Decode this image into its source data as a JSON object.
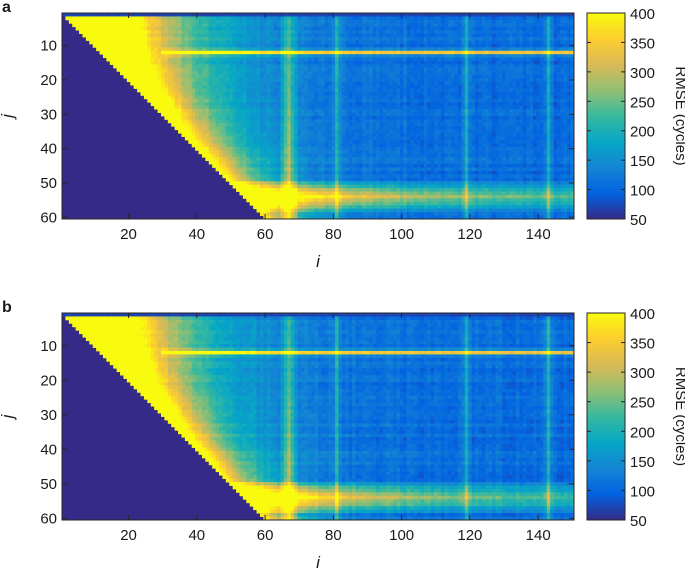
{
  "chart_data": [
    {
      "type": "heatmap",
      "panel_label": "a",
      "xlabel": "i",
      "ylabel": "j",
      "colorbar_label": "RMSE (cycles)",
      "x_range": [
        1,
        150
      ],
      "y_range": [
        1,
        60
      ],
      "y_reversed": true,
      "x_ticks": [
        20,
        40,
        60,
        80,
        100,
        120,
        140
      ],
      "y_ticks": [
        10,
        20,
        30,
        40,
        50,
        60
      ],
      "colorbar_ticks": [
        50,
        100,
        150,
        200,
        250,
        300,
        350,
        400
      ],
      "color_range": [
        50,
        400
      ],
      "colormap": "parula",
      "empty_region": "lower-left triangle where j > i",
      "features": {
        "bright_row_j": 12,
        "bright_row_from_i": 30,
        "bright_band_j": [
          51,
          57
        ],
        "bright_column_i": 67,
        "faint_columns_i": [
          81,
          119,
          143
        ]
      }
    },
    {
      "type": "heatmap",
      "panel_label": "b",
      "xlabel": "i",
      "ylabel": "j",
      "colorbar_label": "RMSE (cycles)",
      "x_range": [
        1,
        150
      ],
      "y_range": [
        1,
        60
      ],
      "y_reversed": true,
      "x_ticks": [
        20,
        40,
        60,
        80,
        100,
        120,
        140
      ],
      "y_ticks": [
        10,
        20,
        30,
        40,
        50,
        60
      ],
      "colorbar_ticks": [
        50,
        100,
        150,
        200,
        250,
        300,
        350,
        400
      ],
      "color_range": [
        50,
        400
      ],
      "colormap": "parula",
      "empty_region": "lower-left triangle where j > i",
      "features": {
        "bright_row_j": 12,
        "bright_row_from_i": 30,
        "bright_band_j": [
          51,
          57
        ],
        "bright_column_i": 67,
        "faint_columns_i": [
          81,
          119,
          143
        ]
      }
    }
  ]
}
